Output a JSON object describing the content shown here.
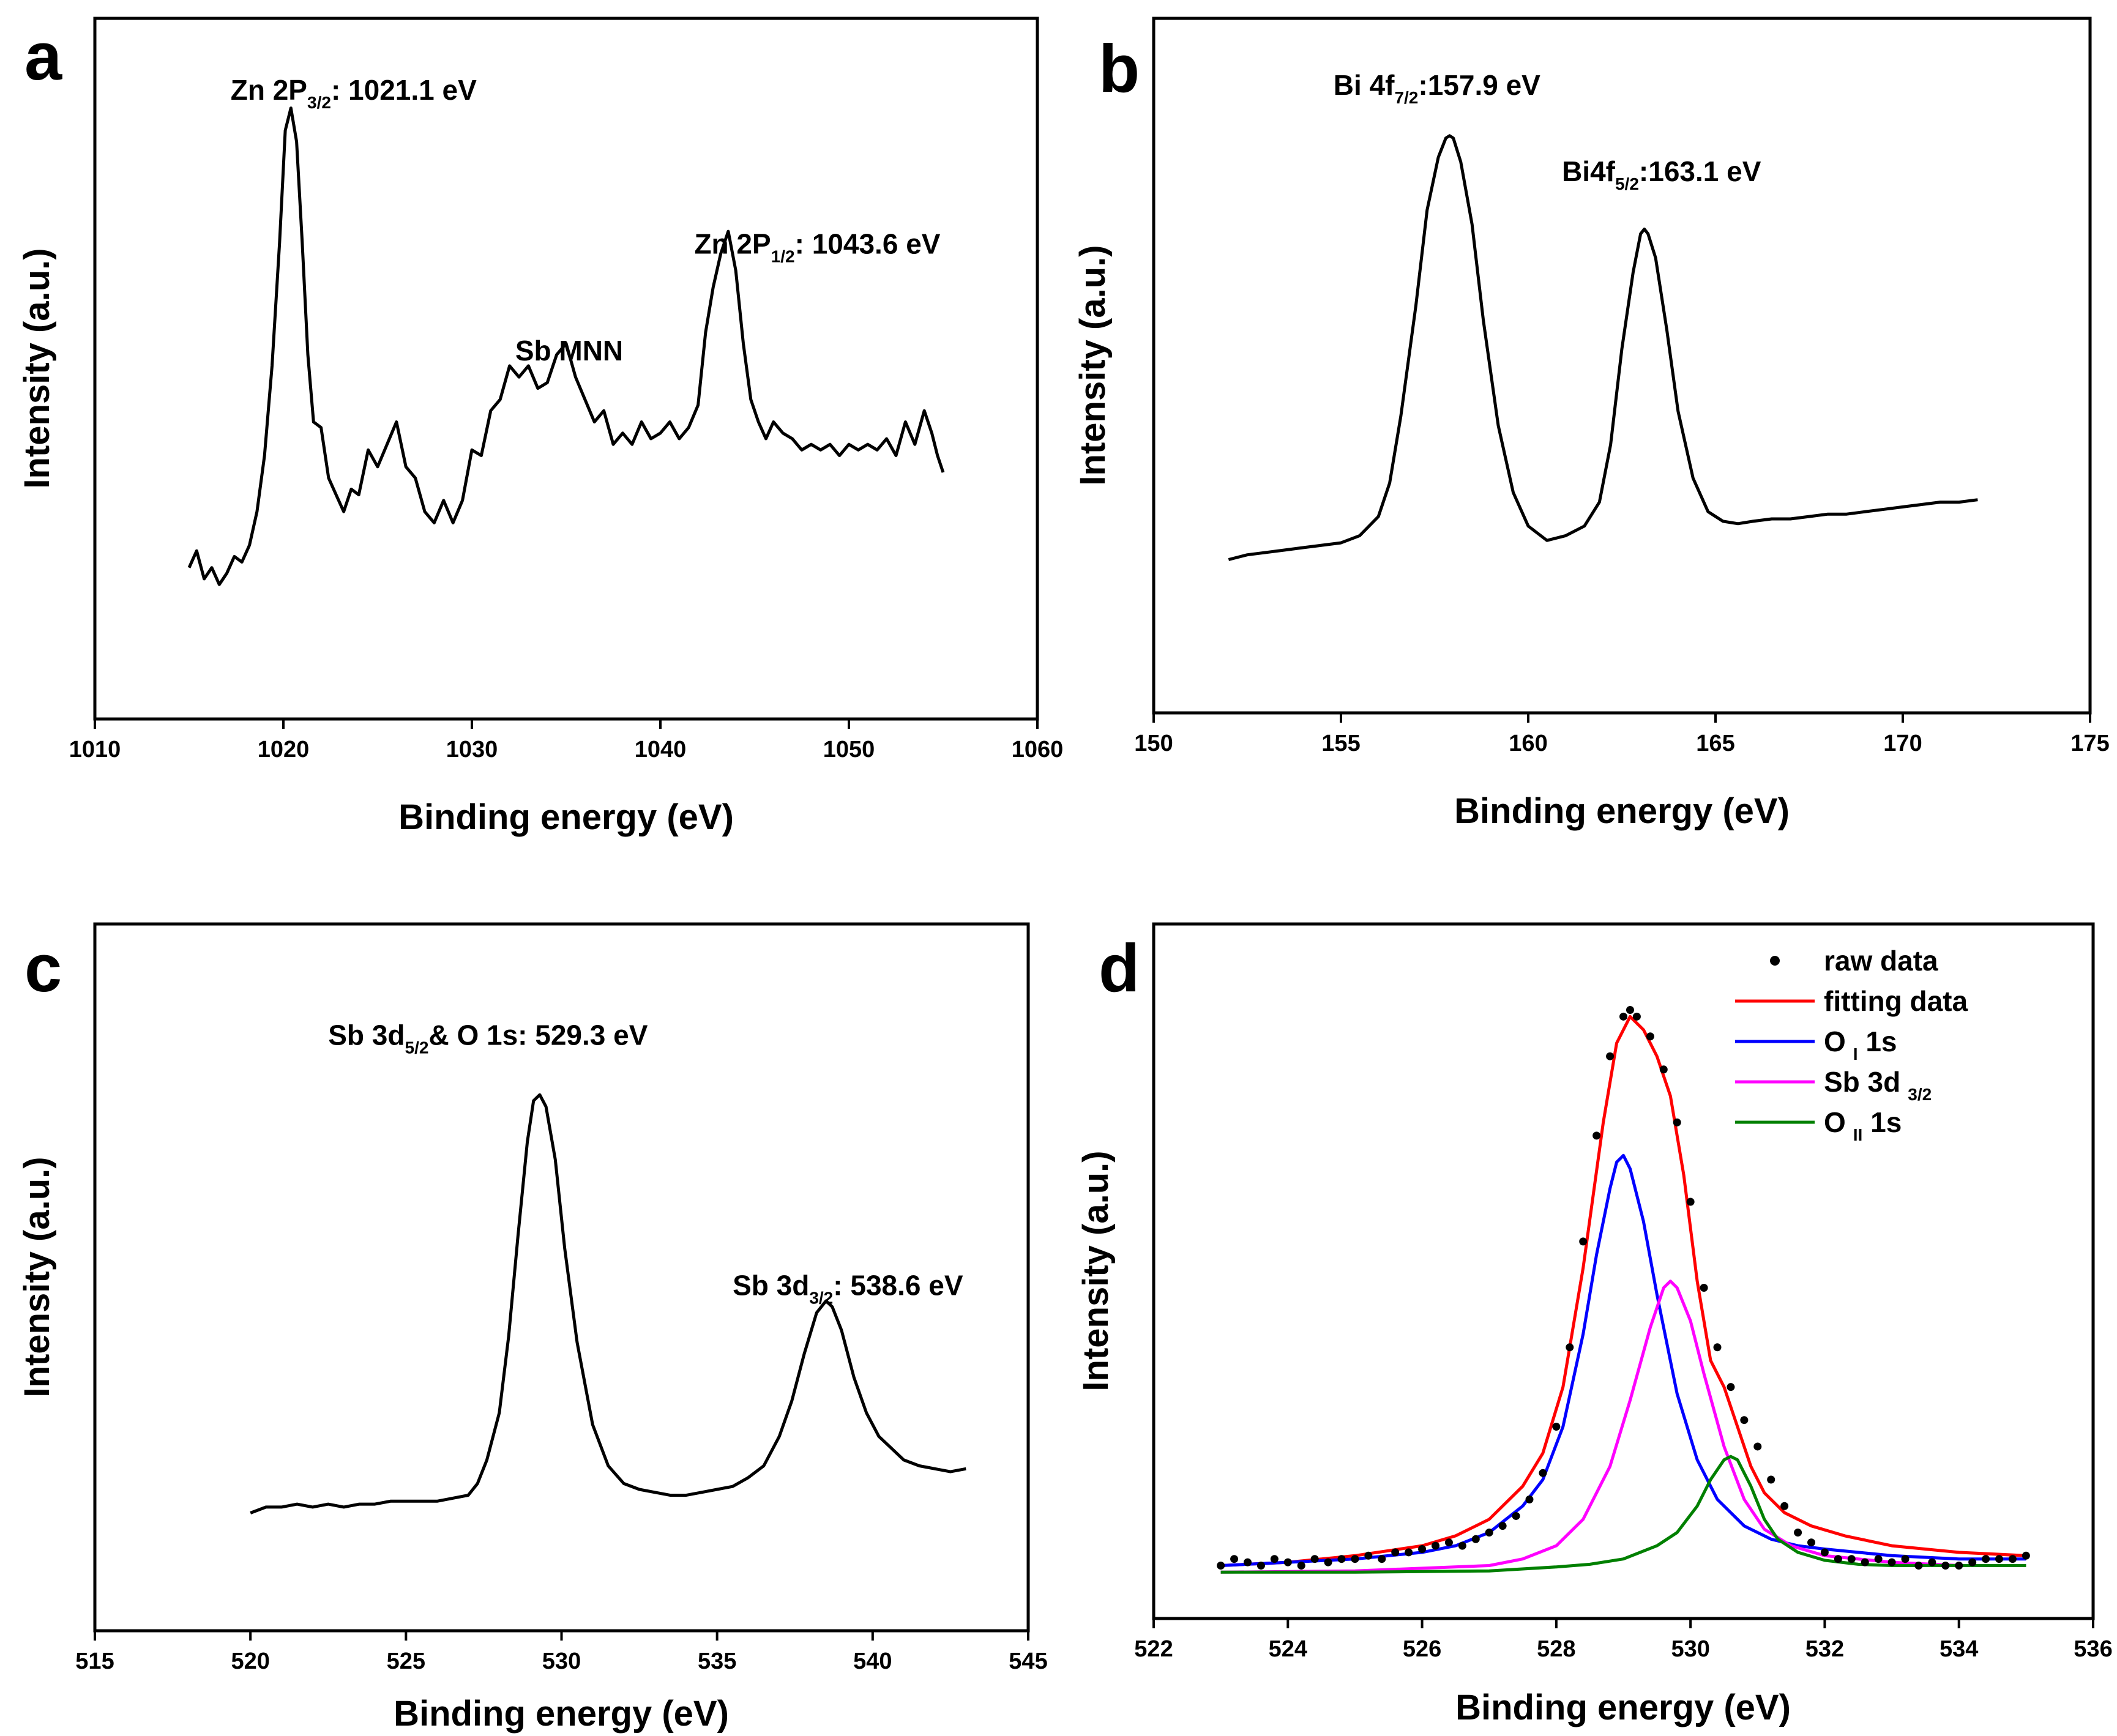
{
  "chart_data": [
    {
      "panel": "a",
      "type": "line",
      "xlabel": "Binding energy (eV)",
      "ylabel": "Intensity (a.u.)",
      "xlim": [
        1010,
        1060
      ],
      "ylim": [
        0,
        100
      ],
      "xticks": [
        1010,
        1020,
        1030,
        1040,
        1050,
        1060
      ],
      "annotations": [
        {
          "main": "Zn 2P",
          "sub": "3/2",
          "rest": ": 1021.1 eV",
          "x": 1017.2,
          "y": 95.5
        },
        {
          "main": "Sb  MNN",
          "sub": "",
          "rest": "",
          "x": 1032.3,
          "y": 49
        },
        {
          "main": "Zn 2P",
          "sub": "1/2",
          "rest": ": 1043.6 eV",
          "x": 1041.8,
          "y": 68
        }
      ],
      "series": [
        {
          "name": "Zn 2p",
          "color": "#000000",
          "x": [
            1015,
            1015.4,
            1015.8,
            1016.2,
            1016.6,
            1017,
            1017.4,
            1017.8,
            1018.2,
            1018.6,
            1019,
            1019.4,
            1019.8,
            1020.1,
            1020.4,
            1020.7,
            1021,
            1021.3,
            1021.6,
            1022,
            1022.4,
            1022.8,
            1023.2,
            1023.6,
            1024,
            1024.5,
            1025,
            1025.5,
            1026,
            1026.5,
            1027,
            1027.5,
            1028,
            1028.5,
            1029,
            1029.5,
            1030,
            1030.5,
            1031,
            1031.5,
            1032,
            1032.5,
            1033,
            1033.5,
            1034,
            1034.5,
            1035,
            1035.5,
            1036,
            1036.5,
            1037,
            1037.5,
            1038,
            1038.5,
            1039,
            1039.5,
            1040,
            1040.5,
            1041,
            1041.5,
            1042,
            1042.4,
            1042.8,
            1043.2,
            1043.6,
            1044,
            1044.4,
            1044.8,
            1045.2,
            1045.6,
            1046,
            1046.5,
            1047,
            1047.5,
            1048,
            1048.5,
            1049,
            1049.5,
            1050,
            1050.5,
            1051,
            1051.5,
            1052,
            1052.5,
            1053,
            1053.5,
            1054,
            1054.4,
            1054.7,
            1055
          ],
          "y": [
            12,
            15,
            10,
            12,
            9,
            11,
            14,
            13,
            16,
            22,
            32,
            48,
            70,
            90,
            94,
            88,
            70,
            50,
            38,
            37,
            28,
            25,
            22,
            26,
            25,
            33,
            30,
            34,
            38,
            30,
            28,
            22,
            20,
            24,
            20,
            24,
            33,
            32,
            40,
            42,
            48,
            46,
            48,
            44,
            45,
            50,
            52,
            46,
            42,
            38,
            40,
            34,
            36,
            34,
            38,
            35,
            36,
            38,
            35,
            37,
            41,
            54,
            62,
            68,
            72,
            65,
            52,
            42,
            38,
            35,
            38,
            36,
            35,
            33,
            34,
            33,
            34,
            32,
            34,
            33,
            34,
            33,
            35,
            32,
            38,
            34,
            40,
            36,
            32,
            29
          ]
        }
      ]
    },
    {
      "panel": "b",
      "type": "line",
      "xlabel": "Binding energy (eV)",
      "ylabel": "Intensity (a.u.)",
      "xlim": [
        150,
        175
      ],
      "ylim": [
        0,
        100
      ],
      "xticks": [
        150,
        155,
        160,
        165,
        170,
        175
      ],
      "annotations": [
        {
          "main": "Bi 4f",
          "sub": "7/2",
          "rest": ":157.9 eV",
          "x": 154.8,
          "y": 109
        },
        {
          "main": "Bi4f",
          "sub": "5/2",
          "rest": ":163.1 eV",
          "x": 160.9,
          "y": 91
        }
      ],
      "series": [
        {
          "name": "Bi 4f",
          "color": "#000000",
          "x": [
            152,
            152.5,
            153,
            153.5,
            154,
            154.5,
            155,
            155.5,
            156,
            156.3,
            156.6,
            157,
            157.3,
            157.6,
            157.8,
            157.9,
            158,
            158.2,
            158.5,
            158.8,
            159.2,
            159.6,
            160,
            160.5,
            161,
            161.5,
            161.9,
            162.2,
            162.5,
            162.8,
            163,
            163.1,
            163.2,
            163.4,
            163.7,
            164,
            164.4,
            164.8,
            165.2,
            165.6,
            166,
            166.5,
            167,
            167.5,
            168,
            168.5,
            169,
            169.5,
            170,
            170.5,
            171,
            171.5,
            172
          ],
          "y": [
            12,
            13,
            13.5,
            14,
            14.5,
            15,
            15.5,
            17,
            21,
            28,
            42,
            65,
            85,
            96,
            100,
            100.5,
            100,
            95,
            82,
            62,
            40,
            26,
            19,
            16,
            17,
            19,
            24,
            36,
            56,
            72,
            80,
            81,
            80,
            75,
            60,
            43,
            29,
            22,
            20,
            19.5,
            20,
            20.5,
            20.5,
            21,
            21.5,
            21.5,
            22,
            22.5,
            23,
            23.5,
            24,
            24,
            24.5
          ]
        }
      ]
    },
    {
      "panel": "c",
      "type": "line",
      "xlabel": "Binding energy (eV)",
      "ylabel": "Intensity (a.u.)",
      "xlim": [
        515,
        545
      ],
      "ylim": [
        0,
        100
      ],
      "xticks": [
        515,
        520,
        525,
        530,
        535,
        540,
        545
      ],
      "annotations": [
        {
          "main": "Sb 3d",
          "sub": "5/2",
          "rest": "& O 1s: 529.3 eV",
          "x": 522.5,
          "y": 94.5
        },
        {
          "main": "Sb 3d",
          "sub": "3/2",
          "rest": ": 538.6 eV",
          "x": 535.5,
          "y": 52
        }
      ],
      "series": [
        {
          "name": "Sb 3d & O 1s",
          "color": "#000000",
          "x": [
            520,
            520.5,
            521,
            521.5,
            522,
            522.5,
            523,
            523.5,
            524,
            524.5,
            525,
            525.5,
            526,
            526.5,
            527,
            527.3,
            527.6,
            528,
            528.3,
            528.6,
            528.9,
            529.1,
            529.3,
            529.5,
            529.8,
            530.1,
            530.5,
            531,
            531.5,
            532,
            532.5,
            533,
            533.5,
            534,
            534.5,
            535,
            535.5,
            536,
            536.5,
            537,
            537.4,
            537.8,
            538.2,
            538.5,
            538.7,
            539,
            539.4,
            539.8,
            540.2,
            540.6,
            541,
            541.5,
            542,
            542.5,
            543
          ],
          "y": [
            15,
            16,
            16,
            16.5,
            16,
            16.5,
            16,
            16.5,
            16.5,
            17,
            17,
            17,
            17,
            17.5,
            18,
            20,
            24,
            32,
            45,
            62,
            78,
            85,
            86,
            84,
            75,
            60,
            44,
            30,
            23,
            20,
            19,
            18.5,
            18,
            18,
            18.5,
            19,
            19.5,
            21,
            23,
            28,
            34,
            42,
            49,
            51,
            50,
            46,
            38,
            32,
            28,
            26,
            24,
            23,
            22.5,
            22,
            22.5
          ]
        }
      ]
    },
    {
      "panel": "d",
      "type": "line",
      "xlabel": "Binding energy (eV)",
      "ylabel": "Intensity (a.u.)",
      "xlim": [
        522,
        536
      ],
      "ylim": [
        0,
        100
      ],
      "xticks": [
        522,
        524,
        526,
        528,
        530,
        532,
        534,
        536
      ],
      "legend": "top-right",
      "legend_items": [
        {
          "label": "raw data",
          "marker": "dot",
          "color": "#000000"
        },
        {
          "label": "fitting data",
          "marker": "line",
          "color": "#ff0000"
        },
        {
          "label": "O",
          "sub": "I",
          "rest": " 1s",
          "marker": "line",
          "color": "#0000ff"
        },
        {
          "label": "Sb 3d",
          "sub": "3/2",
          "rest": "",
          "marker": "line",
          "color": "#ff00ff"
        },
        {
          "label": "O",
          "sub": "II",
          "rest": " 1s",
          "marker": "line",
          "color": "#008000"
        }
      ],
      "series": [
        {
          "name": "fitting data",
          "color": "#ff0000",
          "x": [
            523,
            524,
            525,
            526,
            526.5,
            527,
            527.5,
            527.8,
            528.1,
            528.4,
            528.7,
            528.9,
            529.1,
            529.3,
            529.5,
            529.7,
            529.9,
            530.1,
            530.3,
            530.5,
            530.7,
            530.9,
            531.1,
            531.4,
            531.8,
            532.3,
            533,
            534,
            535
          ],
          "y": [
            5,
            5.5,
            6.5,
            8,
            9.5,
            12,
            17,
            22,
            32,
            50,
            72,
            84,
            88,
            86,
            82,
            76,
            64,
            48,
            36,
            32,
            26,
            20,
            16,
            13,
            11,
            9.5,
            8,
            7,
            6.5
          ]
        },
        {
          "name": "O I 1s",
          "color": "#0000ff",
          "x": [
            523,
            524,
            525,
            526,
            526.5,
            527,
            527.5,
            527.8,
            528.1,
            528.4,
            528.6,
            528.8,
            528.9,
            529,
            529.1,
            529.3,
            529.5,
            529.8,
            530.1,
            530.4,
            530.8,
            531.2,
            531.6,
            532,
            532.5,
            533,
            534,
            535
          ],
          "y": [
            5,
            5.5,
            6,
            7,
            8,
            10,
            14,
            18,
            26,
            40,
            52,
            62,
            66,
            67,
            65,
            57,
            46,
            31,
            21,
            15,
            11,
            9,
            8,
            7.5,
            7,
            6.5,
            6,
            6
          ]
        },
        {
          "name": "Sb 3d3/2",
          "color": "#ff00ff",
          "x": [
            523,
            525,
            527,
            527.5,
            528,
            528.4,
            528.8,
            529.1,
            529.4,
            529.6,
            529.7,
            529.8,
            530,
            530.2,
            530.5,
            530.8,
            531.1,
            531.5,
            532,
            532.5,
            533,
            534,
            535
          ],
          "y": [
            4,
            4.2,
            5,
            6,
            8,
            12,
            20,
            30,
            41,
            47,
            48,
            47,
            42,
            34,
            23,
            15,
            10.5,
            8,
            6.5,
            6,
            5.5,
            5,
            5
          ]
        },
        {
          "name": "O II 1s",
          "color": "#008000",
          "x": [
            523,
            525,
            527,
            528,
            528.5,
            529,
            529.5,
            529.8,
            530.1,
            530.3,
            530.5,
            530.6,
            530.7,
            530.9,
            531.1,
            531.3,
            531.6,
            532,
            532.5,
            533,
            534,
            535
          ],
          "y": [
            4,
            4,
            4.2,
            4.8,
            5.2,
            6,
            8,
            10,
            14,
            18,
            21,
            21.5,
            21,
            17,
            12,
            9,
            7,
            5.8,
            5.2,
            5,
            5,
            5
          ]
        },
        {
          "name": "raw data",
          "color": "#000000",
          "marker": "dot",
          "x": [
            523,
            523.2,
            523.4,
            523.6,
            523.8,
            524,
            524.2,
            524.4,
            524.6,
            524.8,
            525,
            525.2,
            525.4,
            525.6,
            525.8,
            526,
            526.2,
            526.4,
            526.6,
            526.8,
            527,
            527.2,
            527.4,
            527.6,
            527.8,
            528,
            528.2,
            528.4,
            528.6,
            528.8,
            529,
            529.1,
            529.2,
            529.4,
            529.6,
            529.8,
            530,
            530.2,
            530.4,
            530.6,
            530.8,
            531,
            531.2,
            531.4,
            531.6,
            531.8,
            532,
            532.2,
            532.4,
            532.6,
            532.8,
            533,
            533.2,
            533.4,
            533.6,
            533.8,
            534,
            534.2,
            534.4,
            534.6,
            534.8,
            535
          ],
          "y": [
            5,
            6,
            5.5,
            5,
            6,
            5.5,
            5,
            6,
            5.5,
            6,
            6,
            6.5,
            6,
            7,
            7,
            7.5,
            8,
            8.5,
            8,
            9,
            10,
            11,
            12.5,
            15,
            19,
            26,
            38,
            54,
            70,
            82,
            88,
            89,
            88,
            85,
            80,
            72,
            60,
            47,
            38,
            32,
            27,
            23,
            18,
            14,
            10,
            8.5,
            7,
            6,
            6,
            5.5,
            6,
            5.5,
            6,
            5,
            5.5,
            5,
            5,
            5.5,
            6,
            6,
            6,
            6.5
          ]
        }
      ]
    }
  ]
}
